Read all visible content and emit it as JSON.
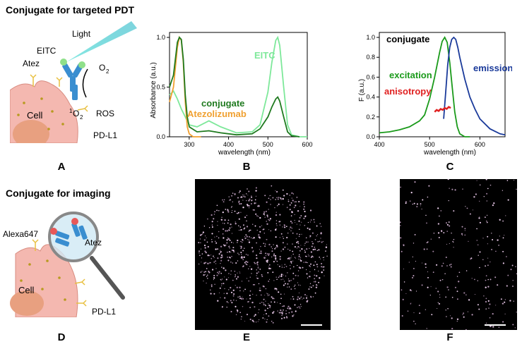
{
  "headers": {
    "pdt": "Conjugate for targeted PDT",
    "imaging": "Conjugate for imaging"
  },
  "panel_labels": [
    "A",
    "B",
    "C",
    "D",
    "E",
    "F"
  ],
  "schematic_a": {
    "light": "Light",
    "eitc": "EITC",
    "atez": "Atez",
    "o2": "O",
    "o2_sub": "2",
    "singlet_sup": "1",
    "singlet": "O",
    "singlet_sub": "2",
    "ros": "ROS",
    "cell": "Cell",
    "pdl1": "PD-L1"
  },
  "schematic_d": {
    "alexa": "Alexa647",
    "atez": "Atez",
    "cell": "Cell",
    "pdl1": "PD-L1"
  },
  "colors": {
    "conjugate": "#1f7a1f",
    "eitc": "#7ee89a",
    "atezolizumab": "#f0a030",
    "excitation": "#1a9a1a",
    "emission": "#1a3a9a",
    "anisotropy": "#e02020",
    "cell": "#f4b8b0",
    "antibody": "#3a8ed0"
  },
  "chart_data": [
    {
      "type": "line",
      "xlabel": "wavelength (nm)",
      "ylabel": "Absorbance (a.u.)",
      "xlim": [
        250,
        600
      ],
      "ylim": [
        0,
        1.05
      ],
      "xticks": [
        300,
        400,
        500,
        600
      ],
      "yticks": [
        "0.0",
        "0.5",
        "1.0"
      ],
      "series": [
        {
          "name": "EITC",
          "color_key": "eitc",
          "x": [
            250,
            260,
            270,
            280,
            290,
            300,
            320,
            350,
            380,
            420,
            460,
            480,
            500,
            510,
            520,
            525,
            530,
            540,
            550,
            560,
            580,
            600
          ],
          "y": [
            0.42,
            0.46,
            0.38,
            0.28,
            0.2,
            0.12,
            0.1,
            0.16,
            0.1,
            0.04,
            0.05,
            0.12,
            0.45,
            0.75,
            0.97,
            1.0,
            0.92,
            0.5,
            0.12,
            0.02,
            0.0,
            0.0
          ]
        },
        {
          "name": "Atezolizumab",
          "color_key": "atezolizumab",
          "x": [
            250,
            260,
            270,
            275,
            280,
            285,
            290,
            295,
            300,
            310,
            330
          ],
          "y": [
            0.35,
            0.5,
            0.9,
            1.0,
            0.97,
            0.75,
            0.35,
            0.1,
            0.03,
            0.0,
            0.0
          ]
        },
        {
          "name": "conjugate",
          "color_key": "conjugate",
          "x": [
            250,
            260,
            270,
            275,
            280,
            285,
            290,
            295,
            300,
            320,
            350,
            380,
            420,
            460,
            480,
            500,
            510,
            520,
            525,
            530,
            540,
            550,
            560,
            580
          ],
          "y": [
            0.5,
            0.62,
            0.95,
            1.0,
            0.98,
            0.78,
            0.42,
            0.2,
            0.1,
            0.05,
            0.06,
            0.04,
            0.02,
            0.03,
            0.08,
            0.2,
            0.3,
            0.38,
            0.4,
            0.36,
            0.2,
            0.05,
            0.01,
            0.0
          ]
        }
      ]
    },
    {
      "type": "line",
      "xlabel": "wavelength (nm)",
      "ylabel": "F (a.u.)",
      "xlim": [
        400,
        650
      ],
      "ylim": [
        0,
        1.05
      ],
      "xticks": [
        400,
        500,
        600
      ],
      "yticks": [
        "0.0",
        "0.2",
        "0.4",
        "0.6",
        "0.8",
        "1.0"
      ],
      "series": [
        {
          "name": "conjugate",
          "color_key": "none",
          "x": [],
          "y": []
        },
        {
          "name": "excitation",
          "color_key": "excitation",
          "x": [
            400,
            420,
            440,
            460,
            480,
            490,
            500,
            510,
            520,
            525,
            530,
            535,
            540,
            545,
            550,
            555,
            560,
            570,
            580
          ],
          "y": [
            0.04,
            0.05,
            0.07,
            0.1,
            0.16,
            0.22,
            0.38,
            0.6,
            0.85,
            0.96,
            1.0,
            0.95,
            0.75,
            0.5,
            0.25,
            0.1,
            0.03,
            0.0,
            0.0
          ]
        },
        {
          "name": "emission",
          "color_key": "emission",
          "x": [
            528,
            532,
            536,
            540,
            544,
            548,
            552,
            556,
            560,
            570,
            580,
            590,
            600,
            620,
            640,
            650
          ],
          "y": [
            0.18,
            0.45,
            0.72,
            0.9,
            0.98,
            1.0,
            0.98,
            0.9,
            0.8,
            0.58,
            0.4,
            0.28,
            0.18,
            0.08,
            0.03,
            0.02
          ]
        },
        {
          "name": "anisotropy",
          "color_key": "anisotropy",
          "x": [
            510,
            514,
            518,
            522,
            526,
            530,
            534,
            538,
            542
          ],
          "y": [
            0.25,
            0.27,
            0.26,
            0.28,
            0.27,
            0.29,
            0.28,
            0.3,
            0.29
          ]
        }
      ]
    }
  ]
}
